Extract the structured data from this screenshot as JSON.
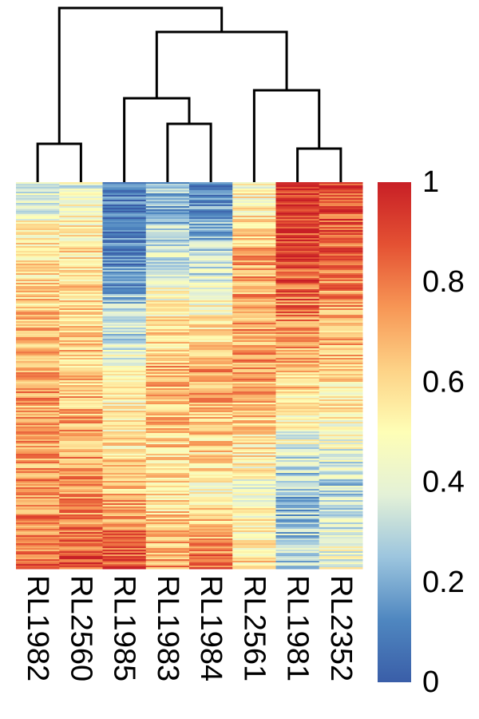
{
  "chart_data": {
    "type": "heatmap",
    "title": "",
    "columns": [
      "RL1982",
      "RL2560",
      "RL1985",
      "RL1983",
      "RL1984",
      "RL2561",
      "RL1981",
      "RL2352"
    ],
    "colorbar": {
      "min": 0,
      "max": 1,
      "ticks": [
        "0",
        "0.2",
        "0.4",
        "0.6",
        "0.8",
        "1"
      ],
      "colors": [
        "#3a5ea8",
        "#4f87c0",
        "#9cc5de",
        "#e4f1d7",
        "#fefeb6",
        "#fdd286",
        "#f79655",
        "#e45133",
        "#c81f26"
      ]
    },
    "column_profiles": {
      "RL1982": [
        {
          "pos": 0,
          "value": 0.3
        },
        {
          "pos": 0.15,
          "value": 0.55
        },
        {
          "pos": 0.5,
          "value": 0.7
        },
        {
          "pos": 0.8,
          "value": 0.73
        },
        {
          "pos": 1,
          "value": 0.85
        }
      ],
      "RL2560": [
        {
          "pos": 0,
          "value": 0.4
        },
        {
          "pos": 0.15,
          "value": 0.55
        },
        {
          "pos": 0.5,
          "value": 0.65
        },
        {
          "pos": 0.8,
          "value": 0.75
        },
        {
          "pos": 1,
          "value": 0.88
        }
      ],
      "RL1985": [
        {
          "pos": 0,
          "value": 0.06
        },
        {
          "pos": 0.2,
          "value": 0.12
        },
        {
          "pos": 0.5,
          "value": 0.45
        },
        {
          "pos": 0.8,
          "value": 0.65
        },
        {
          "pos": 1,
          "value": 0.9
        }
      ],
      "RL1983": [
        {
          "pos": 0,
          "value": 0.18
        },
        {
          "pos": 0.2,
          "value": 0.35
        },
        {
          "pos": 0.5,
          "value": 0.7
        },
        {
          "pos": 0.8,
          "value": 0.55
        },
        {
          "pos": 1,
          "value": 0.75
        }
      ],
      "RL1984": [
        {
          "pos": 0,
          "value": 0.1
        },
        {
          "pos": 0.2,
          "value": 0.3
        },
        {
          "pos": 0.5,
          "value": 0.75
        },
        {
          "pos": 0.8,
          "value": 0.5
        },
        {
          "pos": 1,
          "value": 0.85
        }
      ],
      "RL2561": [
        {
          "pos": 0,
          "value": 0.45
        },
        {
          "pos": 0.2,
          "value": 0.7
        },
        {
          "pos": 0.5,
          "value": 0.72
        },
        {
          "pos": 0.8,
          "value": 0.45
        },
        {
          "pos": 1,
          "value": 0.6
        }
      ],
      "RL1981": [
        {
          "pos": 0,
          "value": 0.95
        },
        {
          "pos": 0.2,
          "value": 0.9
        },
        {
          "pos": 0.5,
          "value": 0.65
        },
        {
          "pos": 0.8,
          "value": 0.25
        },
        {
          "pos": 1,
          "value": 0.3
        }
      ],
      "RL2352": [
        {
          "pos": 0,
          "value": 0.9
        },
        {
          "pos": 0.2,
          "value": 0.82
        },
        {
          "pos": 0.5,
          "value": 0.6
        },
        {
          "pos": 0.8,
          "value": 0.3
        },
        {
          "pos": 1,
          "value": 0.45
        }
      ]
    },
    "dendrogram": {
      "merges": [
        {
          "left": "RL1982",
          "right": "RL2560"
        },
        {
          "left": "RL1983",
          "right": "RL1984"
        },
        {
          "left": "RL1985",
          "right": "RL1983+RL1984"
        },
        {
          "left": "RL1981",
          "right": "RL2352"
        },
        {
          "left": "RL2561",
          "right": "RL1981+RL2352"
        },
        {
          "left": "RL1985+RL1983+RL1984",
          "right": "RL2561+RL1981+RL2352"
        },
        {
          "left": "RL1982+RL2560",
          "right": "all-others"
        }
      ]
    }
  }
}
